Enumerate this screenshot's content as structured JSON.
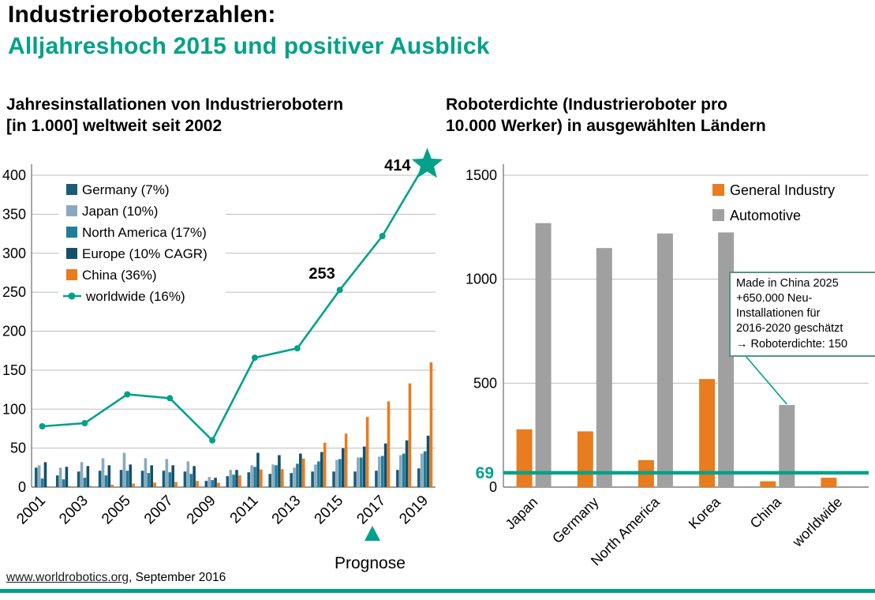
{
  "header": {
    "title_line1": "Industrieroboterzahlen:",
    "title_line2": "Alljahreshoch 2015 und positiver Ausblick"
  },
  "footer": {
    "link": "www.worldrobotics.org",
    "rest": ", September 2016"
  },
  "page": {
    "colors": {
      "teal": "#00a189",
      "orange": "#e87c1e",
      "gray": "#a0a0a0",
      "grid": "#bdbdbd",
      "axis": "#7f7f7f"
    }
  },
  "chart_data": [
    {
      "type": "bar+line",
      "title_lines": [
        "Jahresinstallationen von Industrierobotern",
        "[in 1.000] weltweit seit 2002"
      ],
      "years": [
        2001,
        2002,
        2003,
        2004,
        2005,
        2006,
        2007,
        2008,
        2009,
        2010,
        2011,
        2012,
        2013,
        2014,
        2015,
        2016,
        2017,
        2018,
        2019
      ],
      "ylim": [
        0,
        400
      ],
      "yticks": [
        0,
        50,
        100,
        150,
        200,
        250,
        300,
        350,
        400
      ],
      "series": [
        {
          "name": "Germany (7%)",
          "type": "bar",
          "color": "#1a5d77",
          "values": [
            25,
            15,
            20,
            21,
            22,
            21,
            21,
            20,
            8,
            14,
            19,
            17,
            18,
            20,
            20,
            20,
            21,
            22,
            24
          ]
        },
        {
          "name": "Japan (10%)",
          "type": "bar",
          "color": "#8aa9c1",
          "values": [
            28,
            25,
            32,
            37,
            44,
            37,
            36,
            33,
            13,
            22,
            28,
            29,
            25,
            29,
            35,
            38,
            39,
            41,
            43
          ]
        },
        {
          "name": "North America (17%)",
          "type": "bar",
          "color": "#1f7f98",
          "values": [
            11,
            10,
            12,
            15,
            21,
            18,
            19,
            17,
            9,
            16,
            26,
            28,
            30,
            33,
            36,
            38,
            40,
            43,
            46
          ]
        },
        {
          "name": "Europe (10% CAGR)",
          "type": "bar",
          "color": "#14506b",
          "values": [
            32,
            26,
            27,
            28,
            29,
            28,
            28,
            27,
            12,
            22,
            44,
            41,
            43,
            45,
            50,
            52,
            56,
            60,
            66
          ]
        },
        {
          "name": "China (36%)",
          "type": "bar",
          "color": "#e87c1e",
          "values": [
            1,
            1.2,
            1.5,
            3,
            4.5,
            5.8,
            6.6,
            7.9,
            5.5,
            15,
            22.6,
            23,
            36.6,
            57,
            68.6,
            90,
            110,
            133,
            160
          ]
        },
        {
          "name": "worldwide (16%)",
          "type": "line",
          "color": "#00a189",
          "x": [
            2001,
            2003,
            2005,
            2007,
            2009,
            2011,
            2013,
            2015,
            2017,
            2019
          ],
          "values": [
            78,
            82,
            119,
            114,
            60,
            166,
            178,
            253,
            322,
            414
          ]
        }
      ],
      "annotations": [
        {
          "year": 2015,
          "value": 253,
          "text": "253"
        },
        {
          "year": 2019,
          "value": 414,
          "text": "414",
          "star": true
        }
      ],
      "forecast_label": "Prognose"
    },
    {
      "type": "grouped-bar",
      "title_lines": [
        "Roboterdichte (Industrieroboter pro",
        "10.000 Werker) in ausgewählten Ländern"
      ],
      "categories": [
        "Japan",
        "Germany",
        "North America",
        "Korea",
        "China",
        "worldwide"
      ],
      "ylim": [
        0,
        1500
      ],
      "yticks": [
        0,
        500,
        1000,
        1500
      ],
      "series": [
        {
          "name": "General Industry",
          "color": "#e87c1e",
          "values": [
            278,
            268,
            130,
            520,
            28,
            45
          ]
        },
        {
          "name": "Automotive",
          "color": "#a0a0a0",
          "values": [
            1270,
            1150,
            1220,
            1225,
            395,
            0
          ]
        }
      ],
      "hline": {
        "value": 69,
        "label": "69"
      },
      "callout": {
        "lines": [
          "Made in China 2025",
          "+650.000 Neu-",
          "Installationen für",
          "2016-2020 geschätzt",
          "→ Roboterdichte: 150"
        ],
        "target_category": "China",
        "target_series": "Automotive"
      }
    }
  ]
}
